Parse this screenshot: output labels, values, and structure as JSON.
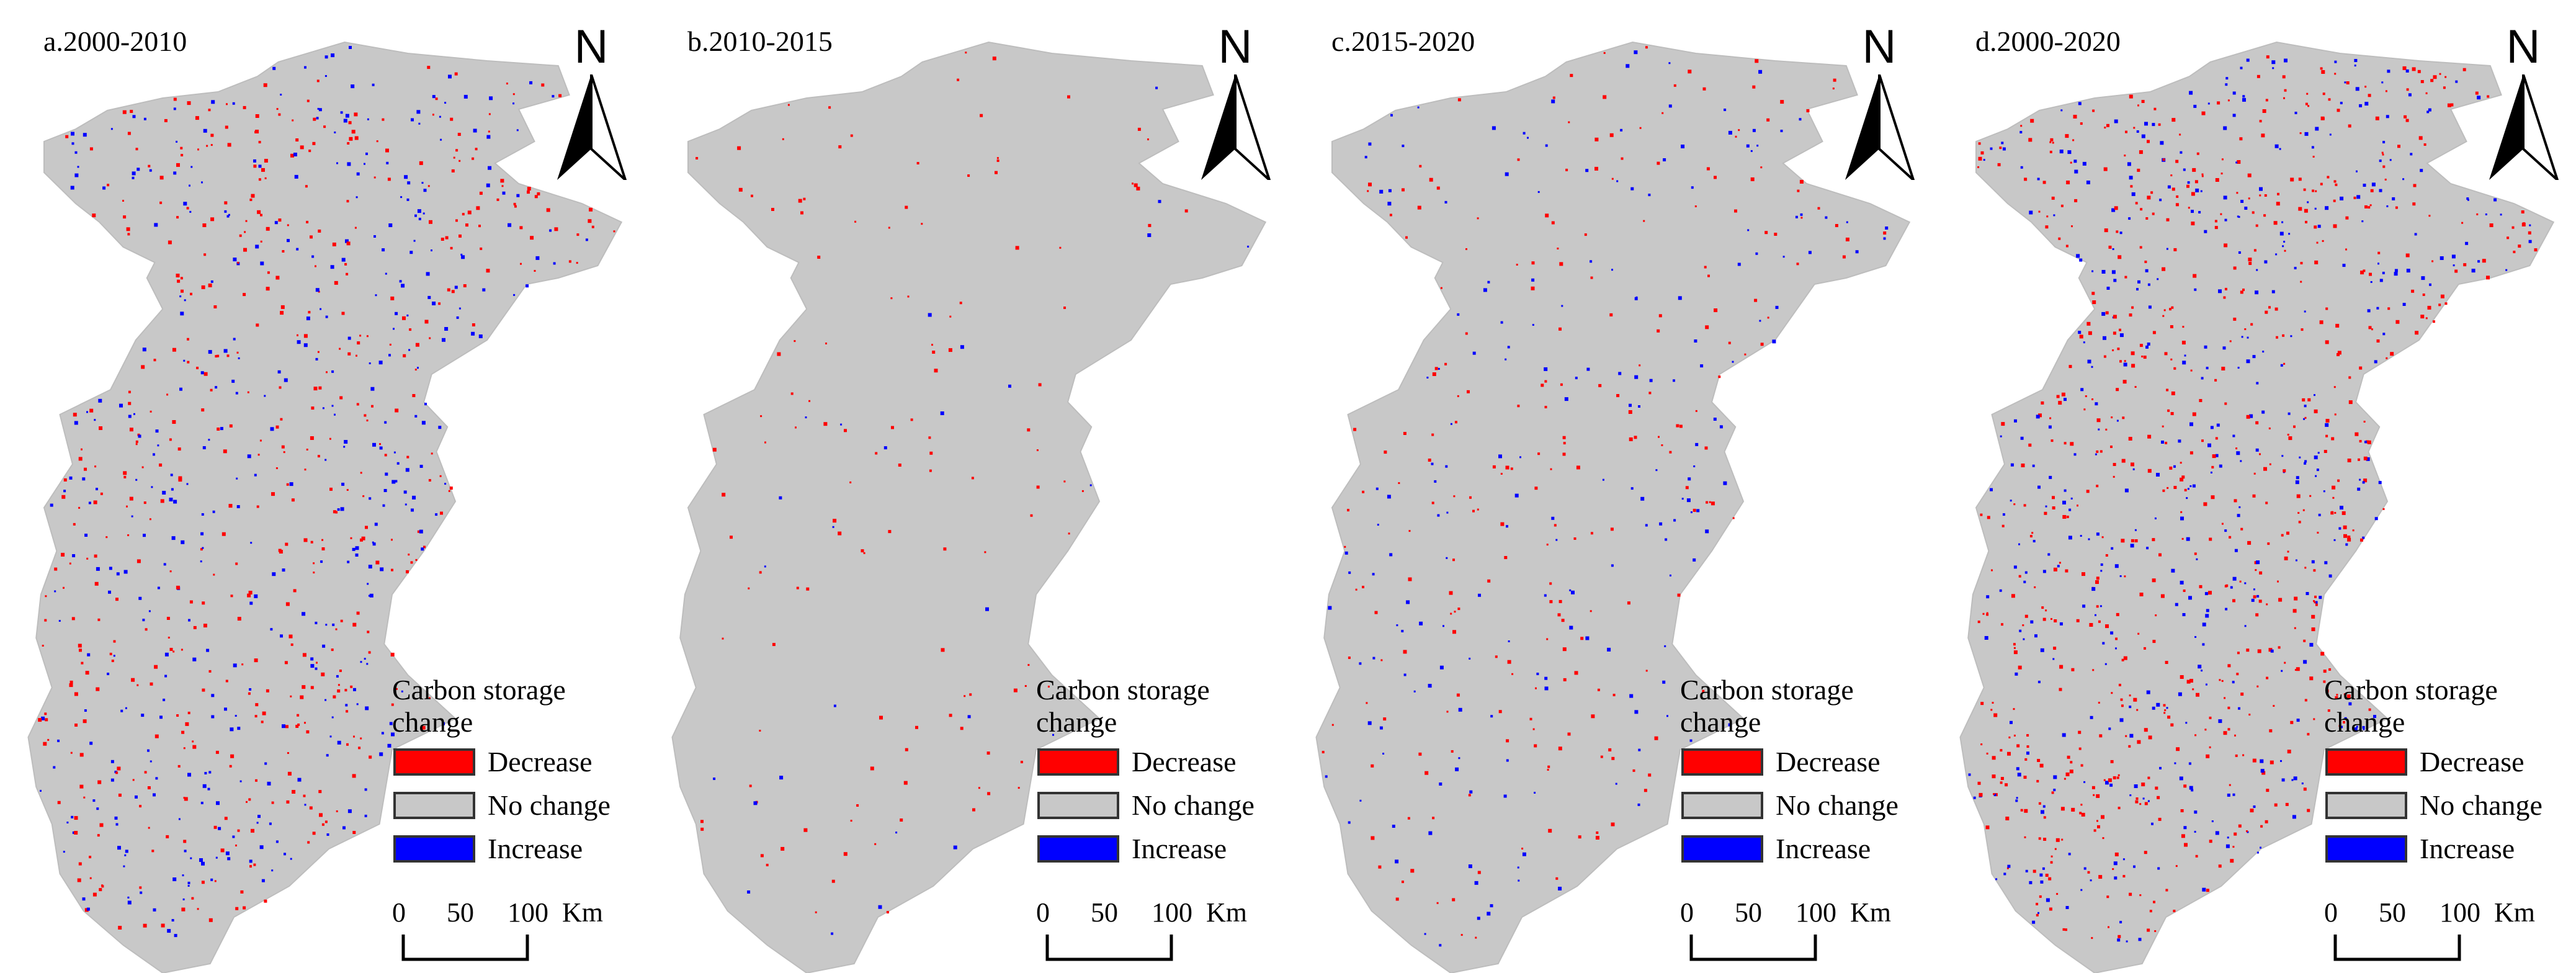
{
  "panels": [
    {
      "title": "a.2000-2010",
      "intensity": {
        "decrease": 0.11,
        "increase": 0.08
      }
    },
    {
      "title": "b.2010-2015",
      "intensity": {
        "decrease": 0.025,
        "increase": 0.006
      }
    },
    {
      "title": "c.2015-2020",
      "intensity": {
        "decrease": 0.05,
        "increase": 0.04
      }
    },
    {
      "title": "d.2000-2020",
      "intensity": {
        "decrease": 0.14,
        "increase": 0.09
      }
    }
  ],
  "north_label": "N",
  "legend": {
    "title_line1": "Carbon storage",
    "title_line2": "change",
    "items": [
      {
        "label": "Decrease",
        "color": "#ff0000"
      },
      {
        "label": "No change",
        "color": "#c8c8c8"
      },
      {
        "label": "Increase",
        "color": "#0000ff"
      }
    ]
  },
  "scale_bar": {
    "labels": [
      "0",
      "50",
      "100"
    ],
    "unit": "Km"
  },
  "colors": {
    "no_change": "#c8c8c8",
    "decrease": "#ff0000",
    "increase": "#0000ff"
  }
}
